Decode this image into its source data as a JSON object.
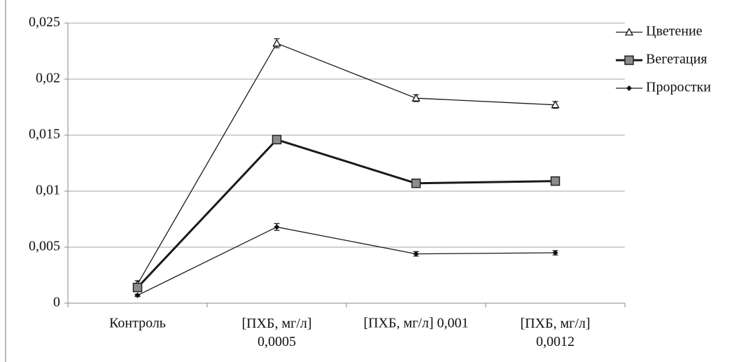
{
  "chart_data": {
    "type": "line",
    "categories": [
      "Контроль",
      "[ПХБ, мг/л]\n0,0005",
      "[ПХБ, мг/л] 0,001",
      "[ПХБ, мг/л]\n0,0012"
    ],
    "series": [
      {
        "name": "Цветение",
        "color": "#1a1a1a",
        "marker": "triangle",
        "values": [
          0.0017,
          0.0232,
          0.0183,
          0.0177
        ],
        "errors": [
          0.0003,
          0.0004,
          0.0003,
          0.0003
        ]
      },
      {
        "name": "Вегетация",
        "color": "#1a1a1a",
        "marker": "square",
        "values": [
          0.0014,
          0.0146,
          0.0107,
          0.0109
        ],
        "errors": [
          0.0002,
          0.0002,
          0.0002,
          0.0002
        ]
      },
      {
        "name": "Проростки",
        "color": "#1a1a1a",
        "marker": "diamond",
        "values": [
          0.0007,
          0.0068,
          0.0044,
          0.0045
        ],
        "errors": [
          0.0001,
          0.0003,
          0.0002,
          0.0002
        ]
      }
    ],
    "ylim": [
      0,
      0.025
    ],
    "yticks": [
      0,
      {
        "value": 0.005,
        "label": "0,005"
      },
      {
        "value": 0.01,
        "label": "0,01"
      },
      {
        "value": 0.015,
        "label": "0,015"
      },
      {
        "value": 0.02,
        "label": "0,02"
      },
      {
        "value": 0.025,
        "label": "0,025"
      }
    ],
    "grid": true,
    "legend": "right"
  }
}
